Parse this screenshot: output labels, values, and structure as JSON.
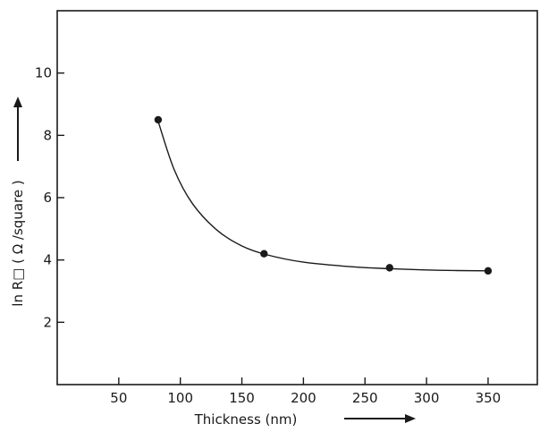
{
  "chart_data": {
    "type": "scatter",
    "title": "",
    "xlabel": "Thickness (nm)",
    "ylabel": "ln R□ ( Ω /square )",
    "xlim": [
      0,
      390
    ],
    "ylim": [
      0,
      12
    ],
    "x_ticks": [
      50,
      100,
      150,
      200,
      250,
      300,
      350
    ],
    "y_ticks": [
      2,
      4,
      6,
      8,
      10
    ],
    "grid": false,
    "legend": "none",
    "series": [
      {
        "points": [
          {
            "x": 82,
            "y": 8.5
          },
          {
            "x": 168,
            "y": 4.2
          },
          {
            "x": 270,
            "y": 3.75
          },
          {
            "x": 350,
            "y": 3.65
          }
        ],
        "fit_curve": [
          {
            "x": 82,
            "y": 8.45
          },
          {
            "x": 95,
            "y": 6.9
          },
          {
            "x": 110,
            "y": 5.8
          },
          {
            "x": 130,
            "y": 4.95
          },
          {
            "x": 150,
            "y": 4.45
          },
          {
            "x": 170,
            "y": 4.17
          },
          {
            "x": 200,
            "y": 3.93
          },
          {
            "x": 240,
            "y": 3.78
          },
          {
            "x": 270,
            "y": 3.72
          },
          {
            "x": 310,
            "y": 3.67
          },
          {
            "x": 350,
            "y": 3.65
          }
        ]
      }
    ]
  }
}
